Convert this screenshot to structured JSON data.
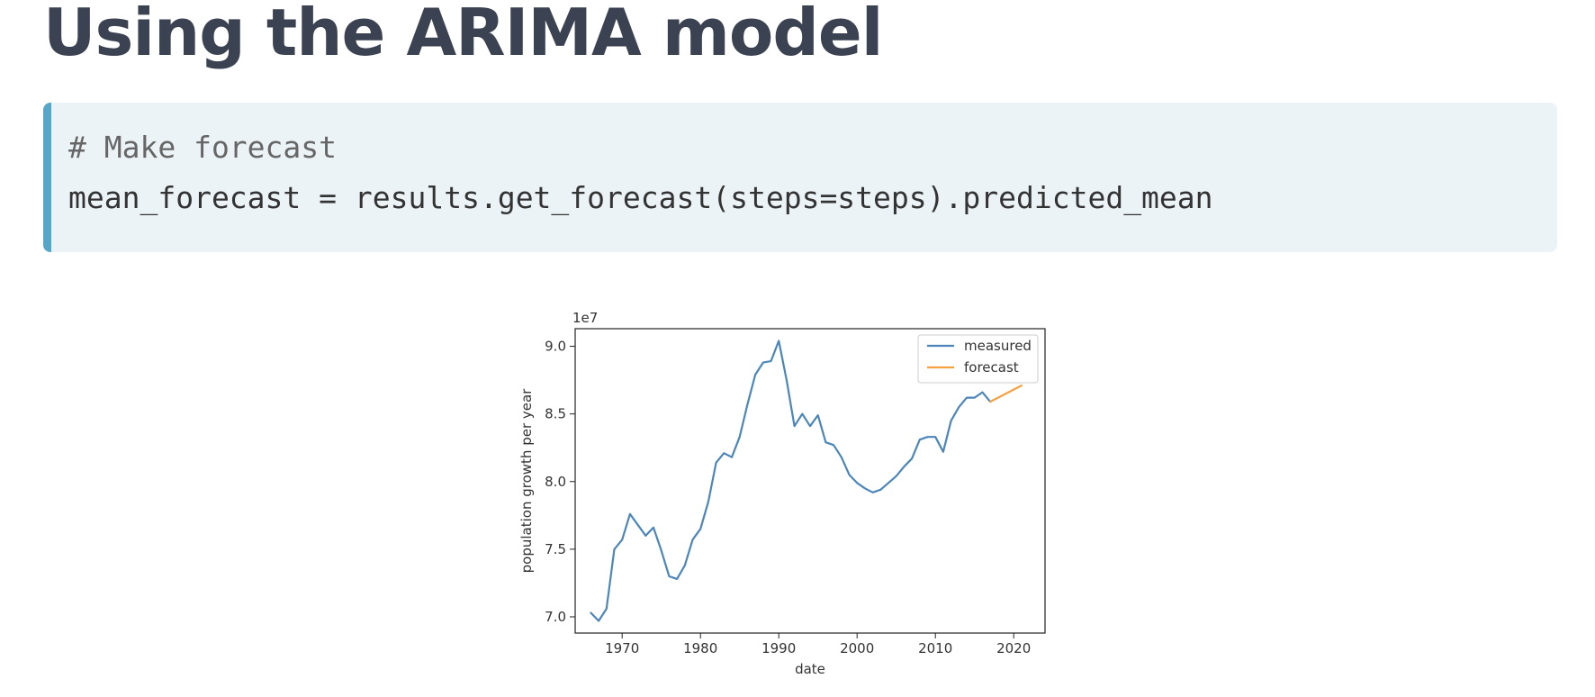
{
  "page": {
    "title": "Using the ARIMA model"
  },
  "code": {
    "lines": [
      {
        "text": "# Make forecast",
        "kind": "comment"
      },
      {
        "text": "mean_forecast = results.get_forecast(steps=steps).predicted_mean",
        "kind": "code"
      }
    ]
  },
  "chart_data": {
    "type": "line",
    "xlabel": "date",
    "ylabel": "population growth per year",
    "offset_label": "1e7",
    "xlim": [
      1964,
      2024
    ],
    "ylim": [
      6.88,
      9.13
    ],
    "xticks": [
      1970,
      1980,
      1990,
      2000,
      2010,
      2020
    ],
    "yticks": [
      7.0,
      7.5,
      8.0,
      8.5,
      9.0
    ],
    "ytick_labels": [
      "7.0",
      "7.5",
      "8.0",
      "8.5",
      "9.0"
    ],
    "legend_position": "upper right",
    "series": [
      {
        "name": "measured",
        "color": "#4c86b8",
        "x": [
          1966,
          1967,
          1968,
          1969,
          1970,
          1971,
          1972,
          1973,
          1974,
          1975,
          1976,
          1977,
          1978,
          1979,
          1980,
          1981,
          1982,
          1983,
          1984,
          1985,
          1986,
          1987,
          1988,
          1989,
          1990,
          1991,
          1992,
          1993,
          1994,
          1995,
          1996,
          1997,
          1998,
          1999,
          2000,
          2001,
          2002,
          2003,
          2004,
          2005,
          2006,
          2007,
          2008,
          2009,
          2010,
          2011,
          2012,
          2013,
          2014,
          2015,
          2016,
          2017
        ],
        "y": [
          7.03,
          6.97,
          7.06,
          7.5,
          7.57,
          7.76,
          7.68,
          7.6,
          7.66,
          7.49,
          7.3,
          7.28,
          7.38,
          7.57,
          7.65,
          7.85,
          8.14,
          8.21,
          8.18,
          8.33,
          8.57,
          8.79,
          8.88,
          8.89,
          9.04,
          8.75,
          8.41,
          8.5,
          8.41,
          8.49,
          8.29,
          8.27,
          8.18,
          8.05,
          7.99,
          7.95,
          7.92,
          7.94,
          7.99,
          8.04,
          8.11,
          8.17,
          8.31,
          8.33,
          8.33,
          8.22,
          8.45,
          8.55,
          8.62,
          8.62,
          8.66,
          8.59
        ]
      },
      {
        "name": "forecast",
        "color": "#f5a143",
        "x": [
          2017,
          2018,
          2019,
          2020,
          2021
        ],
        "y": [
          8.59,
          8.62,
          8.65,
          8.68,
          8.71
        ]
      }
    ]
  }
}
